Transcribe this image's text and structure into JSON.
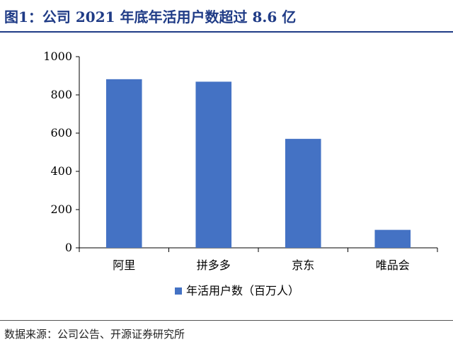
{
  "figure": {
    "title": "图1：公司 2021 年底年活用户数超过 8.6 亿",
    "source": "数据来源：公司公告、开源证券研究所"
  },
  "colors": {
    "bar": "#4472c4",
    "title": "#1f3b86",
    "axis": "#000000"
  },
  "chart_data": {
    "type": "bar",
    "categories": [
      "阿里",
      "拼多多",
      "京东",
      "唯品会"
    ],
    "series": [
      {
        "name": "年活用户数（百万人）",
        "values": [
          882,
          869,
          570,
          94
        ]
      }
    ],
    "yticks": [
      "0",
      "200",
      "400",
      "600",
      "800",
      "1000"
    ],
    "ylim": [
      0,
      1000
    ],
    "legend": "bottom",
    "grid": false
  }
}
